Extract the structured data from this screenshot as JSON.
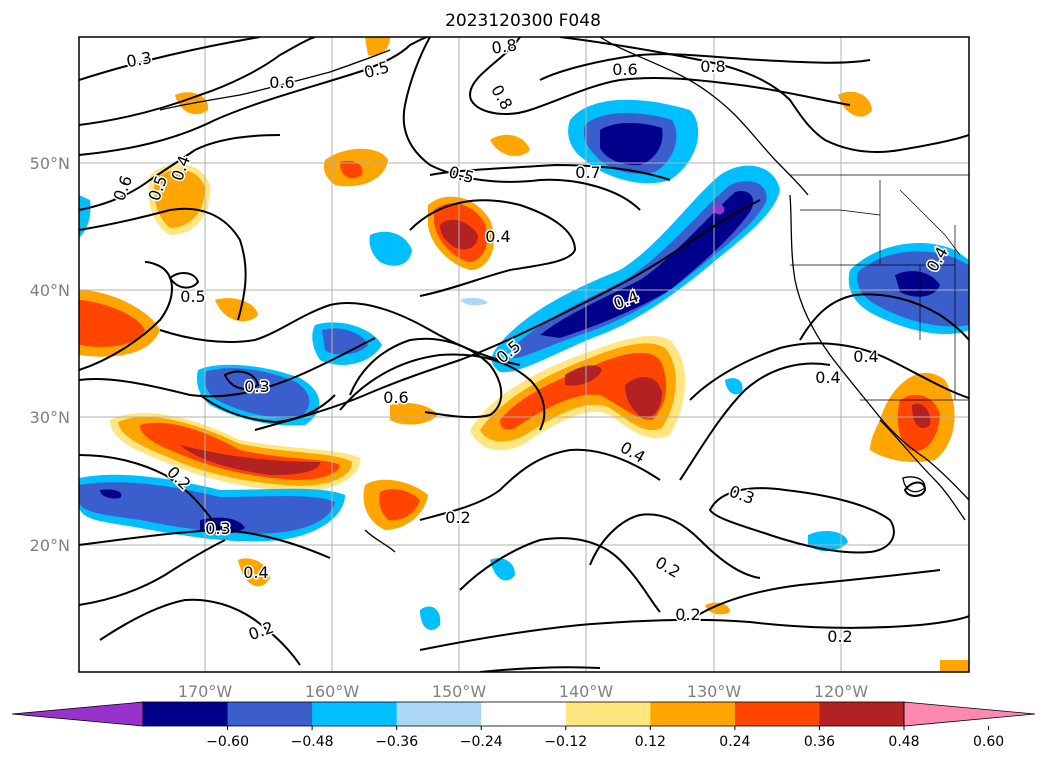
{
  "title": "2023120300 F048",
  "lat_labels": [
    "50°N",
    "40°N",
    "30°N",
    "20°N"
  ],
  "lon_labels": [
    "170°W",
    "160°W",
    "150°W",
    "140°W",
    "130°W",
    "120°W"
  ],
  "colorbar": {
    "ticks": [
      "−0.60",
      "−0.48",
      "−0.36",
      "−0.24",
      "−0.12",
      "0.12",
      "0.24",
      "0.36",
      "0.48",
      "0.60"
    ],
    "colors": [
      "#9932cc",
      "#00008b",
      "#3a5fcd",
      "#00bfff",
      "#add8f5",
      "#ffffff",
      "#ffe680",
      "#ffa500",
      "#ff4500",
      "#b22222",
      "#ff88b0"
    ]
  },
  "contour_labels": [
    "0.3",
    "0.6",
    "0.5",
    "0.8",
    "0.8",
    "0.6",
    "0.8",
    "0.7",
    "0.5",
    "0.6",
    "0.5",
    "0.4",
    "0.4",
    "0.5",
    "0.4",
    "0.4",
    "0.3",
    "0.6",
    "0.5",
    "0.4",
    "0.4",
    "0.2",
    "0.3",
    "0.2",
    "0.4",
    "0.4",
    "0.2",
    "0.3",
    "0.2",
    "0.2",
    "0.2"
  ]
}
